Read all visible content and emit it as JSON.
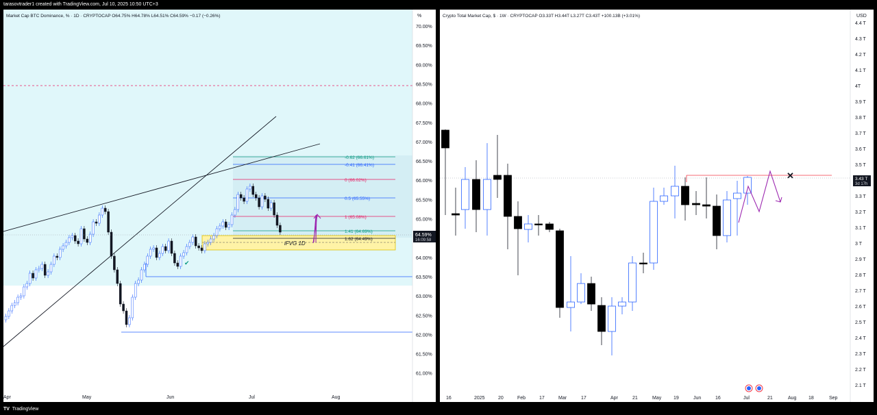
{
  "top_bar": {
    "text": "tarasovtrader1 created with TradingView.com, Jul 10, 2025 10:50 UTC+3"
  },
  "bottom_bar": {
    "logo": "TV",
    "brand": "TradingView"
  },
  "left_chart": {
    "legend": "Market Cap BTC Dominance, %  · 1D · CRYPTOCAP  O64.75%  H64.78%  L64.51%  C64.59%  −0.17 (−0.26%)",
    "unit_label": "%",
    "price_ticks": [
      "70.00%",
      "69.50%",
      "69.00%",
      "68.50%",
      "68.00%",
      "67.50%",
      "67.00%",
      "66.50%",
      "66.00%",
      "65.50%",
      "65.00%",
      "64.50%",
      "64.00%",
      "63.50%",
      "63.00%",
      "62.50%",
      "62.00%",
      "61.50%",
      "61.00%"
    ],
    "current_price": "64.59%",
    "countdown": "16:09:58",
    "time_ticks": [
      "Apr",
      "May",
      "Jun",
      "Jul",
      "Aug"
    ],
    "fib_levels": [
      {
        "label": "-0.62 (66.61%)",
        "color": "#089981"
      },
      {
        "label": "-0.41 (66.41%)",
        "color": "#2962ff"
      },
      {
        "label": "0 (66.02%)",
        "color": "#e91e63"
      },
      {
        "label": "0.5 (65.55%)",
        "color": "#2962ff"
      },
      {
        "label": "1 (65.08%)",
        "color": "#e91e63"
      },
      {
        "label": "1.41 (64.69%)",
        "color": "#089981"
      },
      {
        "label": "1.62 (64.49%)",
        "color": "#131722"
      }
    ],
    "zone_label": "iFVG 1D",
    "colors": {
      "background": "#e0f7fa",
      "zone": "#fff3a6",
      "arrow": "#9c27b0",
      "level_line": "#2962ff"
    }
  },
  "right_chart": {
    "legend": "Crypto Total Market Cap, $ · 1W · CRYPTOCAP  O3.33T  H3.44T  L3.27T  C3.43T  +100.13B (+3.01%)",
    "unit_label": "USD",
    "price_ticks": [
      "4.4 T",
      "4.3 T",
      "4.2 T",
      "4.1 T",
      "4T",
      "3.9 T",
      "3.8 T",
      "3.7 T",
      "3.6 T",
      "3.5 T",
      "3.4 T",
      "3.3 T",
      "3.2 T",
      "3.1 T",
      "3 T",
      "2.9 T",
      "2.8 T",
      "2.7 T",
      "2.6 T",
      "2.5 T",
      "2.4 T",
      "2.3 T",
      "2.2 T",
      "2.1 T"
    ],
    "current_price": "3.43 T",
    "countdown": "3d 17h",
    "time_ticks": [
      "16",
      "2025",
      "20",
      "Feb",
      "17",
      "Mar",
      "17",
      "Apr",
      "21",
      "May",
      "19",
      "Jun",
      "16",
      "Jul",
      "21",
      "Aug",
      "18",
      "Sep"
    ],
    "colors": {
      "up_body": "#ffffff",
      "up_border": "#2962ff",
      "down_body": "#000000",
      "resistance": "#f23645",
      "arrow": "#9c27b0"
    }
  }
}
